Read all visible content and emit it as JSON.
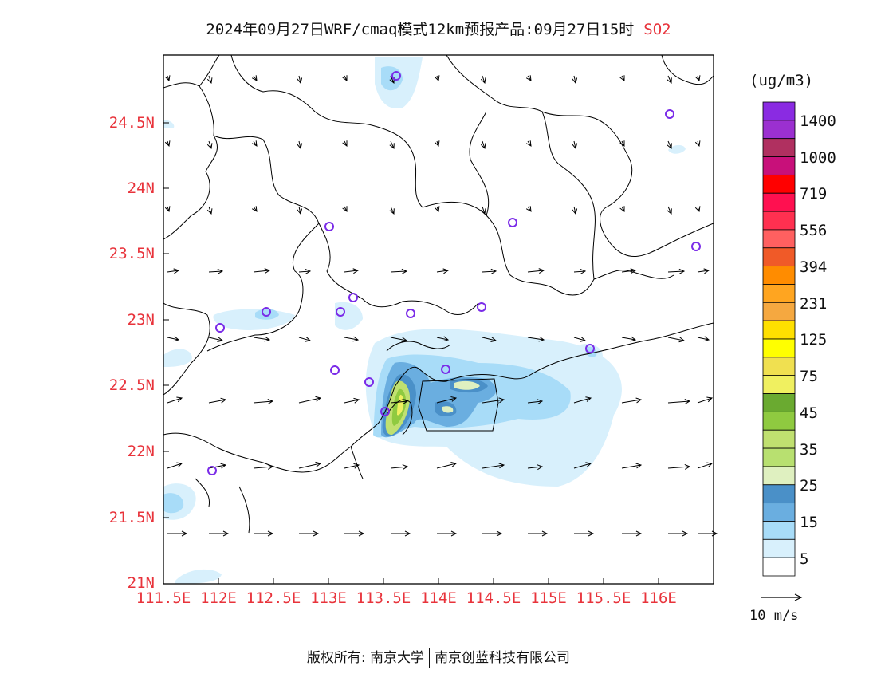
{
  "title": {
    "main": "2024年09月27日WRF/cmaq模式12km预报产品:09月27日15时",
    "pollutant": "SO2"
  },
  "axes": {
    "lat_ticks": [
      "24.5N",
      "24N",
      "23.5N",
      "23N",
      "22.5N",
      "22N",
      "21.5N",
      "21N"
    ],
    "lon_ticks": [
      "111.5E",
      "112E",
      "112.5E",
      "113E",
      "113.5E",
      "114E",
      "114.5E",
      "115E",
      "115.5E",
      "116E"
    ]
  },
  "colorbar": {
    "unit": "(ug/m3)",
    "labels": [
      "1400",
      "1000",
      "719",
      "556",
      "394",
      "231",
      "125",
      "75",
      "45",
      "35",
      "25",
      "15",
      "5"
    ],
    "colors": [
      "#8a2be2",
      "#9b30d0",
      "#b03060",
      "#c8107a",
      "#ff0000",
      "#ff1050",
      "#ff3050",
      "#ff6060",
      "#f05a28",
      "#ff8c00",
      "#ffa520",
      "#f5a840",
      "#ffe000",
      "#ffff00",
      "#f0e050",
      "#f0f060",
      "#6aaa30",
      "#8fca40",
      "#c0e070",
      "#b8e070",
      "#dff0c0",
      "#4a90c8",
      "#6aaee0",
      "#a8dcf8",
      "#d8f0fc",
      "#ffffff"
    ]
  },
  "vector_reference": {
    "label": "10 m/s"
  },
  "footer": {
    "left": "版权所有: 南京大学",
    "right": "南京创蓝科技有限公司"
  },
  "stations_color": "#7a2be8"
}
